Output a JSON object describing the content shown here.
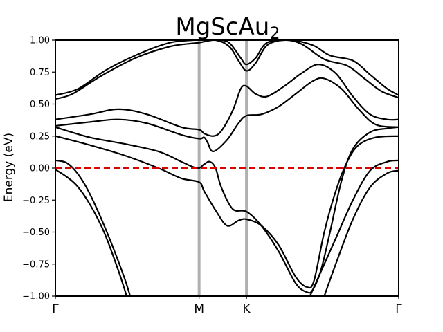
{
  "chart_data": {
    "type": "line",
    "title": "MgScAu",
    "title_subscript": "2",
    "xlabel": "",
    "ylabel": "Energy (eV)",
    "ylim": [
      -1.0,
      1.0
    ],
    "xlim": [
      0.0,
      3.0
    ],
    "yticks": [
      -1.0,
      -0.75,
      -0.5,
      -0.25,
      0.0,
      0.25,
      0.5,
      0.75,
      1.0
    ],
    "ytick_labels": [
      "−1.00",
      "−0.75",
      "−0.50",
      "−0.25",
      "0.00",
      "0.25",
      "0.50",
      "0.75",
      "1.00"
    ],
    "kpoints": [
      {
        "label": "Γ",
        "x": 0.0
      },
      {
        "label": "M",
        "x": 1.256
      },
      {
        "label": "K",
        "x": 1.67
      },
      {
        "label": "Γ",
        "x": 3.0
      }
    ],
    "fermi_level": 0.0,
    "colors": {
      "bands": "#000000",
      "fermi": "#dd0000",
      "kline": "#b0b0b0"
    },
    "bands": [
      {
        "name": "band-1",
        "points": [
          [
            0,
            -0.01
          ],
          [
            0.2,
            -0.15
          ],
          [
            0.4,
            -0.45
          ],
          [
            0.55,
            -0.8
          ],
          [
            0.64,
            -1.05
          ]
        ]
      },
      {
        "name": "band-2",
        "points": [
          [
            0,
            0.06
          ],
          [
            0.1,
            0.04
          ],
          [
            0.2,
            -0.05
          ],
          [
            0.3,
            -0.2
          ],
          [
            0.45,
            -0.5
          ],
          [
            0.6,
            -0.85
          ],
          [
            0.67,
            -1.05
          ]
        ]
      },
      {
        "name": "band-3",
        "points": [
          [
            2.33,
            -1.05
          ],
          [
            2.45,
            -0.75
          ],
          [
            2.6,
            -0.4
          ],
          [
            2.75,
            -0.15
          ],
          [
            2.9,
            -0.04
          ],
          [
            3.0,
            -0.02
          ]
        ]
      },
      {
        "name": "band-4",
        "points": [
          [
            2.2,
            -1.05
          ],
          [
            2.3,
            -0.85
          ],
          [
            2.45,
            -0.55
          ],
          [
            2.6,
            -0.25
          ],
          [
            2.75,
            -0.02
          ],
          [
            2.9,
            0.05
          ],
          [
            3.0,
            0.06
          ]
        ]
      },
      {
        "name": "band-5",
        "points": [
          [
            0,
            0.25
          ],
          [
            0.3,
            0.18
          ],
          [
            0.6,
            0.1
          ],
          [
            0.9,
            0.0
          ],
          [
            1.1,
            -0.08
          ],
          [
            1.256,
            -0.11
          ],
          [
            1.3,
            -0.18
          ],
          [
            1.4,
            -0.33
          ],
          [
            1.5,
            -0.45
          ],
          [
            1.6,
            -0.41
          ],
          [
            1.67,
            -0.4
          ],
          [
            1.8,
            -0.45
          ],
          [
            1.95,
            -0.6
          ],
          [
            2.1,
            -0.85
          ],
          [
            2.2,
            -0.93
          ],
          [
            2.26,
            -0.88
          ],
          [
            2.35,
            -0.5
          ],
          [
            2.45,
            -0.18
          ],
          [
            2.55,
            0.05
          ],
          [
            2.65,
            0.18
          ],
          [
            2.8,
            0.24
          ],
          [
            3.0,
            0.25
          ]
        ]
      },
      {
        "name": "band-6",
        "points": [
          [
            0,
            0.32
          ],
          [
            0.3,
            0.24
          ],
          [
            0.6,
            0.19
          ],
          [
            0.9,
            0.13
          ],
          [
            1.1,
            0.05
          ],
          [
            1.2,
            0.01
          ],
          [
            1.256,
            0.0
          ],
          [
            1.3,
            0.03
          ],
          [
            1.35,
            0.05
          ],
          [
            1.4,
            0.0
          ],
          [
            1.45,
            -0.15
          ],
          [
            1.55,
            -0.32
          ],
          [
            1.67,
            -0.34
          ],
          [
            1.8,
            -0.45
          ],
          [
            1.95,
            -0.65
          ],
          [
            2.1,
            -0.9
          ],
          [
            2.2,
            -0.97
          ],
          [
            2.25,
            -0.95
          ],
          [
            2.32,
            -0.8
          ],
          [
            2.4,
            -0.5
          ],
          [
            2.5,
            -0.1
          ],
          [
            2.6,
            0.15
          ],
          [
            2.75,
            0.28
          ],
          [
            2.9,
            0.31
          ],
          [
            3.0,
            0.32
          ]
        ]
      },
      {
        "name": "band-7",
        "points": [
          [
            0,
            0.33
          ],
          [
            0.3,
            0.36
          ],
          [
            0.55,
            0.38
          ],
          [
            0.8,
            0.35
          ],
          [
            1.1,
            0.26
          ],
          [
            1.256,
            0.23
          ],
          [
            1.3,
            0.24
          ],
          [
            1.33,
            0.2
          ],
          [
            1.38,
            0.13
          ],
          [
            1.5,
            0.22
          ],
          [
            1.6,
            0.35
          ],
          [
            1.67,
            0.41
          ],
          [
            1.8,
            0.42
          ],
          [
            1.95,
            0.48
          ],
          [
            2.1,
            0.58
          ],
          [
            2.25,
            0.68
          ],
          [
            2.35,
            0.7
          ],
          [
            2.5,
            0.62
          ],
          [
            2.65,
            0.46
          ],
          [
            2.8,
            0.34
          ],
          [
            3.0,
            0.32
          ]
        ]
      },
      {
        "name": "band-8",
        "points": [
          [
            0,
            0.38
          ],
          [
            0.3,
            0.42
          ],
          [
            0.55,
            0.46
          ],
          [
            0.8,
            0.42
          ],
          [
            1.1,
            0.32
          ],
          [
            1.256,
            0.3
          ],
          [
            1.3,
            0.27
          ],
          [
            1.38,
            0.25
          ],
          [
            1.45,
            0.29
          ],
          [
            1.55,
            0.45
          ],
          [
            1.62,
            0.62
          ],
          [
            1.67,
            0.64
          ],
          [
            1.75,
            0.58
          ],
          [
            1.85,
            0.56
          ],
          [
            2.0,
            0.64
          ],
          [
            2.15,
            0.74
          ],
          [
            2.3,
            0.81
          ],
          [
            2.45,
            0.74
          ],
          [
            2.6,
            0.56
          ],
          [
            2.75,
            0.42
          ],
          [
            2.9,
            0.38
          ],
          [
            3.0,
            0.38
          ]
        ]
      },
      {
        "name": "band-9",
        "points": [
          [
            0,
            0.54
          ],
          [
            0.15,
            0.58
          ],
          [
            0.4,
            0.72
          ],
          [
            0.7,
            0.86
          ],
          [
            1.0,
            0.95
          ],
          [
            1.2,
            0.975
          ],
          [
            1.256,
            0.98
          ],
          [
            1.4,
            1.0
          ],
          [
            1.52,
            0.95
          ],
          [
            1.6,
            0.84
          ],
          [
            1.67,
            0.76
          ],
          [
            1.75,
            0.82
          ],
          [
            1.85,
            0.96
          ],
          [
            2.0,
            1.0
          ],
          [
            2.15,
            0.97
          ],
          [
            2.35,
            0.85
          ],
          [
            2.55,
            0.8
          ],
          [
            2.7,
            0.7
          ],
          [
            2.85,
            0.6
          ],
          [
            3.0,
            0.55
          ]
        ]
      },
      {
        "name": "band-10",
        "points": [
          [
            0,
            0.57
          ],
          [
            0.2,
            0.62
          ],
          [
            0.45,
            0.77
          ],
          [
            0.75,
            0.9
          ],
          [
            1.0,
            0.98
          ],
          [
            1.2,
            1.0
          ],
          [
            1.256,
            1.0
          ],
          [
            1.45,
            1.0
          ],
          [
            1.53,
            0.97
          ],
          [
            1.62,
            0.86
          ],
          [
            1.67,
            0.81
          ],
          [
            1.75,
            0.86
          ],
          [
            1.85,
            0.98
          ],
          [
            2.05,
            1.0
          ],
          [
            2.25,
            0.96
          ],
          [
            2.4,
            0.88
          ],
          [
            2.6,
            0.84
          ],
          [
            2.75,
            0.73
          ],
          [
            2.9,
            0.62
          ],
          [
            3.0,
            0.57
          ]
        ]
      }
    ]
  }
}
